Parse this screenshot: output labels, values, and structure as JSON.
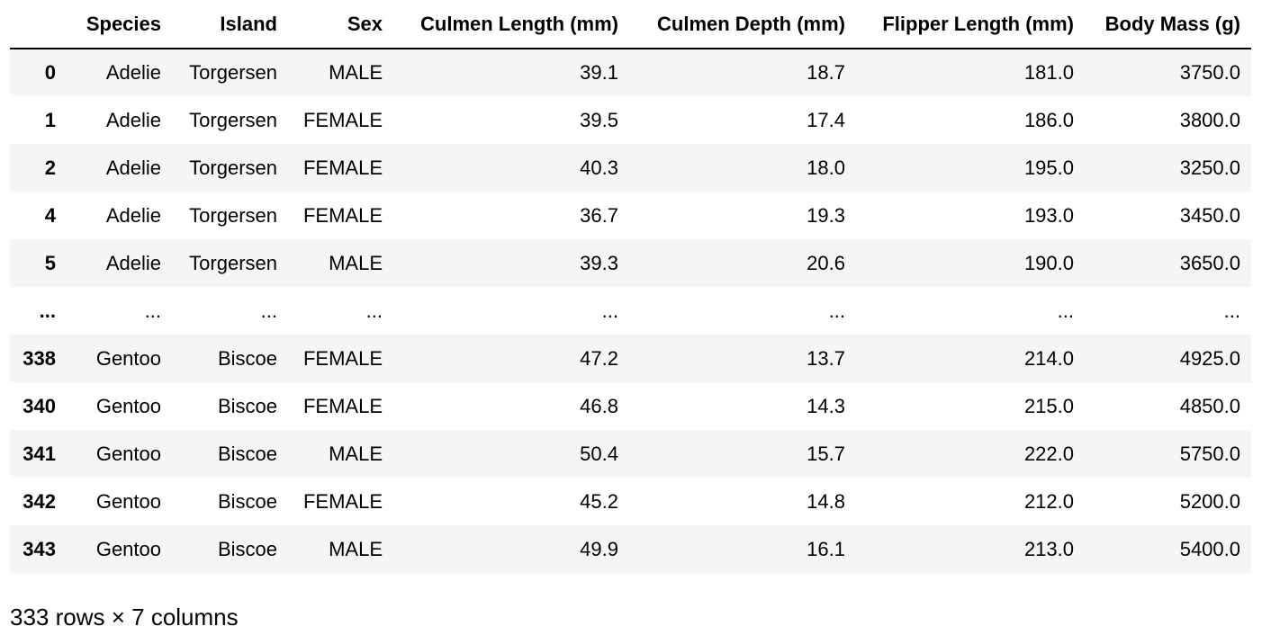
{
  "columns": [
    "",
    "Species",
    "Island",
    "Sex",
    "Culmen Length (mm)",
    "Culmen Depth (mm)",
    "Flipper Length (mm)",
    "Body Mass (g)"
  ],
  "rows": [
    [
      "0",
      "Adelie",
      "Torgersen",
      "MALE",
      "39.1",
      "18.7",
      "181.0",
      "3750.0"
    ],
    [
      "1",
      "Adelie",
      "Torgersen",
      "FEMALE",
      "39.5",
      "17.4",
      "186.0",
      "3800.0"
    ],
    [
      "2",
      "Adelie",
      "Torgersen",
      "FEMALE",
      "40.3",
      "18.0",
      "195.0",
      "3250.0"
    ],
    [
      "4",
      "Adelie",
      "Torgersen",
      "FEMALE",
      "36.7",
      "19.3",
      "193.0",
      "3450.0"
    ],
    [
      "5",
      "Adelie",
      "Torgersen",
      "MALE",
      "39.3",
      "20.6",
      "190.0",
      "3650.0"
    ],
    [
      "...",
      "...",
      "...",
      "...",
      "...",
      "...",
      "...",
      "..."
    ],
    [
      "338",
      "Gentoo",
      "Biscoe",
      "FEMALE",
      "47.2",
      "13.7",
      "214.0",
      "4925.0"
    ],
    [
      "340",
      "Gentoo",
      "Biscoe",
      "FEMALE",
      "46.8",
      "14.3",
      "215.0",
      "4850.0"
    ],
    [
      "341",
      "Gentoo",
      "Biscoe",
      "MALE",
      "50.4",
      "15.7",
      "222.0",
      "5750.0"
    ],
    [
      "342",
      "Gentoo",
      "Biscoe",
      "FEMALE",
      "45.2",
      "14.8",
      "212.0",
      "5200.0"
    ],
    [
      "343",
      "Gentoo",
      "Biscoe",
      "MALE",
      "49.9",
      "16.1",
      "213.0",
      "5400.0"
    ]
  ],
  "shape_note": "333 rows × 7 columns"
}
